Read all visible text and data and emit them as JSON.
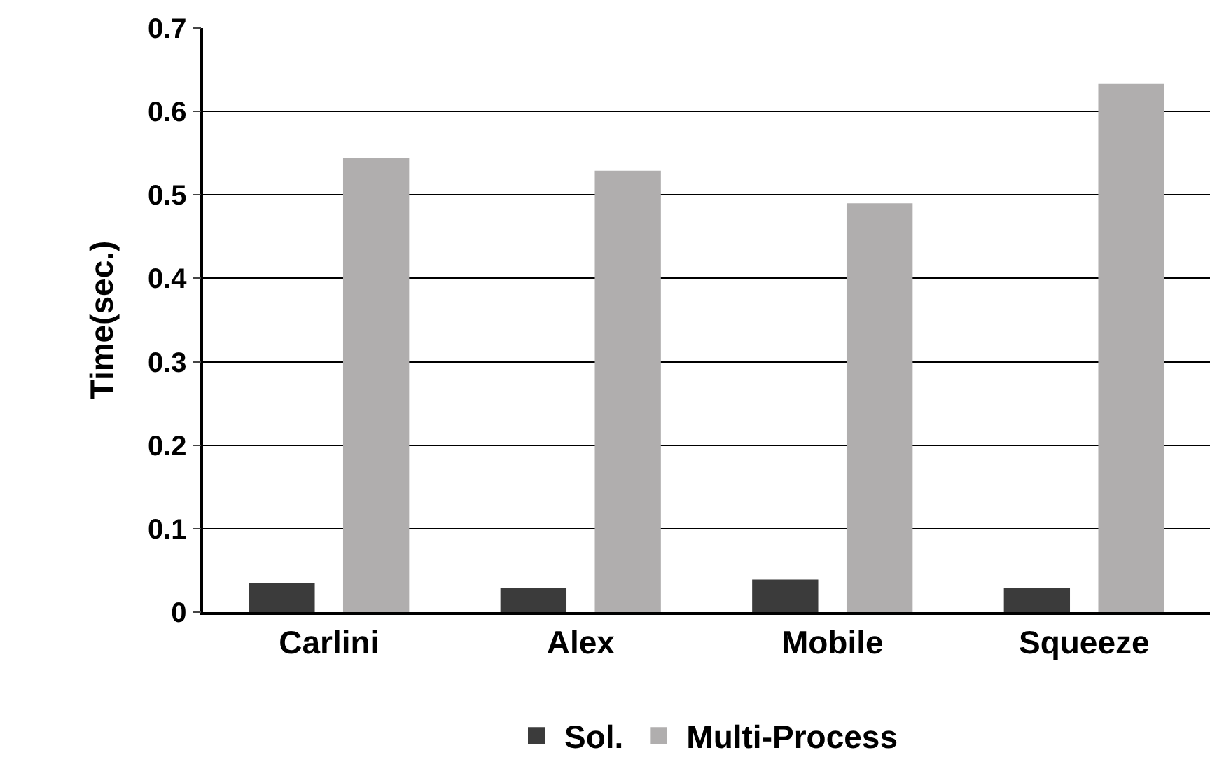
{
  "chart_data": {
    "type": "bar",
    "ylabel": "Time(sec.)",
    "categories": [
      "Carlini",
      "Alex",
      "Mobile",
      "Squeeze"
    ],
    "series": [
      {
        "name": "Sol.",
        "color": "#3b3b3b",
        "values": [
          0.035,
          0.029,
          0.039,
          0.029
        ]
      },
      {
        "name": "Multi-Process",
        "color": "#b0aeae",
        "values": [
          0.544,
          0.529,
          0.49,
          0.633
        ]
      }
    ],
    "ylim": [
      0,
      0.7
    ],
    "yticks": [
      0,
      0.1,
      0.2,
      0.3,
      0.4,
      0.5,
      0.6,
      0.7
    ],
    "grid": "y",
    "legend": "bottom"
  }
}
